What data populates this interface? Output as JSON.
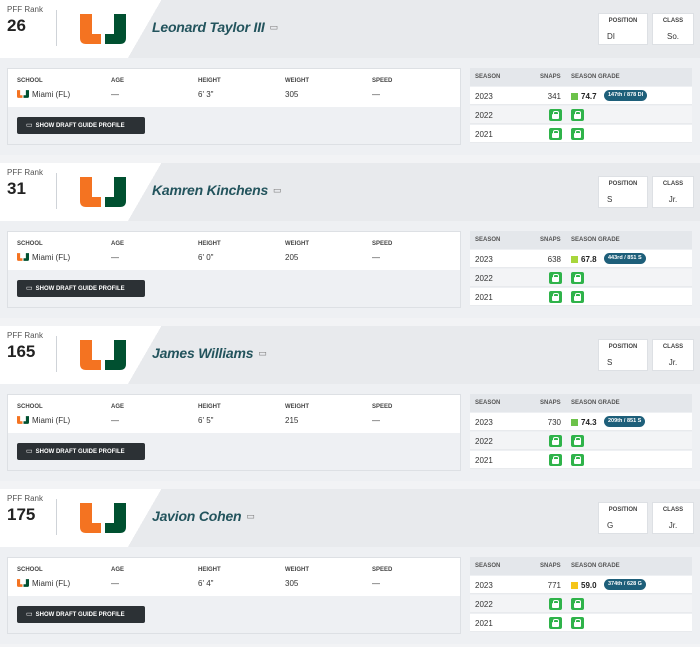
{
  "labels": {
    "pff_rank": "PFF Rank",
    "position": "POSITION",
    "class": "CLASS",
    "school": "SCHOOL",
    "age": "AGE",
    "height": "HEIGHT",
    "weight": "WEIGHT",
    "speed": "SPEED",
    "draft_button": "SHOW DRAFT GUIDE PROFILE",
    "season": "SEASON",
    "snaps": "SNAPS",
    "season_grade": "SEASON GRADE"
  },
  "colors": {
    "brand_orange": "#f47321",
    "brand_green": "#005030",
    "lock_green": "#2fb34a",
    "name_teal": "#23545d"
  },
  "players": [
    {
      "rank": "26",
      "name": "Leonard Taylor III",
      "position": "DI",
      "class": "So.",
      "school": "Miami (FL)",
      "age": "—",
      "height": "6' 3\"",
      "weight": "305",
      "speed": "—",
      "seasons": [
        {
          "year": "2023",
          "snaps": "341",
          "grade": "74.7",
          "grade_color": "#6cc24a",
          "rank_text": "147th / 878 DI",
          "locked": false
        },
        {
          "year": "2022",
          "locked": true
        },
        {
          "year": "2021",
          "locked": true
        }
      ]
    },
    {
      "rank": "31",
      "name": "Kamren Kinchens",
      "position": "S",
      "class": "Jr.",
      "school": "Miami (FL)",
      "age": "—",
      "height": "6' 0\"",
      "weight": "205",
      "speed": "—",
      "seasons": [
        {
          "year": "2023",
          "snaps": "638",
          "grade": "67.8",
          "grade_color": "#a8d63c",
          "rank_text": "443rd / 851 S",
          "locked": false
        },
        {
          "year": "2022",
          "locked": true
        },
        {
          "year": "2021",
          "locked": true
        }
      ]
    },
    {
      "rank": "165",
      "name": "James Williams",
      "position": "S",
      "class": "Jr.",
      "school": "Miami (FL)",
      "age": "—",
      "height": "6' 5\"",
      "weight": "215",
      "speed": "—",
      "seasons": [
        {
          "year": "2023",
          "snaps": "730",
          "grade": "74.3",
          "grade_color": "#6cc24a",
          "rank_text": "209th / 851 S",
          "locked": false
        },
        {
          "year": "2022",
          "locked": true
        },
        {
          "year": "2021",
          "locked": true
        }
      ]
    },
    {
      "rank": "175",
      "name": "Javion Cohen",
      "position": "G",
      "class": "Jr.",
      "school": "Miami (FL)",
      "age": "—",
      "height": "6' 4\"",
      "weight": "305",
      "speed": "—",
      "seasons": [
        {
          "year": "2023",
          "snaps": "771",
          "grade": "59.0",
          "grade_color": "#f5c518",
          "rank_text": "374th / 628 G",
          "locked": false
        },
        {
          "year": "2022",
          "locked": true
        },
        {
          "year": "2021",
          "locked": true
        }
      ]
    }
  ]
}
